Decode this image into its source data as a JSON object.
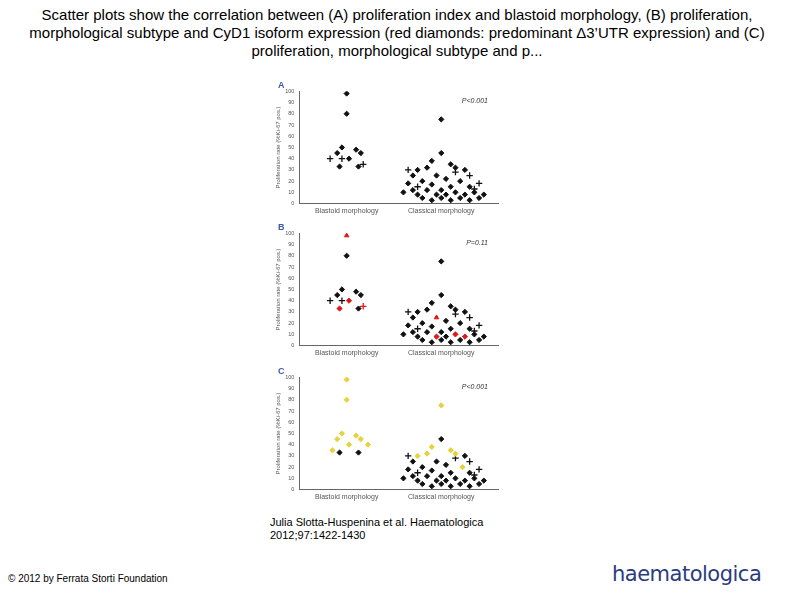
{
  "title": "Scatter plots show the correlation between (A) proliferation index and blastoid morphology, (B) proliferation, morphological subtype and CyD1 isoform expression (red diamonds: predominant Δ3’UTR expression) and (C) proliferation, morphological subtype and p...",
  "citation": "Julia Slotta-Huspenina et al. Haematologica 2012;97:1422-1430",
  "copyright": "© 2012 by Ferrata Storti Foundation",
  "logo": "haematologica",
  "chart_data": [
    {
      "panel": "A",
      "type": "scatter",
      "ylabel": "Proliferation rate (%Ki-67 pos.)",
      "annotation": "P<0.001",
      "xlim": [
        0,
        4.2
      ],
      "xticks": [
        {
          "value": 1,
          "label": "Blastoid morphology"
        },
        {
          "value": 3,
          "label": "Classical morphology"
        }
      ],
      "ylim": [
        0,
        100
      ],
      "yticks": [
        0,
        10,
        20,
        30,
        40,
        50,
        60,
        70,
        80,
        90,
        100
      ],
      "grid": false,
      "series": [
        {
          "color": "#111111",
          "marker": "diamond",
          "x": [
            1.0,
            1.0,
            0.9,
            1.2,
            0.8,
            1.3,
            1.05,
            1.25,
            0.85,
            3.0,
            3.0,
            2.8,
            3.2,
            2.5,
            2.7,
            3.3,
            3.5,
            2.4,
            2.9,
            3.1,
            2.6,
            3.4,
            2.3,
            2.8,
            3.2,
            3.6,
            2.4,
            2.7,
            3.0,
            3.3,
            3.7,
            2.5,
            2.9,
            3.1,
            3.5,
            2.6,
            3.0,
            3.4,
            3.8,
            2.8,
            3.2,
            3.6,
            2.2,
            3.9
          ],
          "values": [
            98,
            80,
            50,
            48,
            45,
            45,
            40,
            33,
            33,
            75,
            45,
            38,
            35,
            30,
            32,
            32,
            30,
            25,
            25,
            22,
            20,
            20,
            18,
            17,
            15,
            15,
            12,
            12,
            12,
            10,
            10,
            8,
            8,
            8,
            8,
            5,
            5,
            5,
            5,
            3,
            3,
            3,
            10,
            8
          ]
        },
        {
          "color": "#111111",
          "marker": "cross",
          "x": [
            0.65,
            0.9,
            1.35,
            2.3,
            3.6,
            3.8,
            2.5,
            3.7,
            3.3
          ],
          "values": [
            40,
            40,
            35,
            30,
            25,
            18,
            15,
            13,
            28
          ]
        }
      ]
    },
    {
      "panel": "B",
      "type": "scatter",
      "ylabel": "Proliferation rate (%Ki-67 pos.)",
      "annotation": "P=0.11",
      "xlim": [
        0,
        4.2
      ],
      "xticks": [
        {
          "value": 1,
          "label": "Blastoid morphology"
        },
        {
          "value": 3,
          "label": "Classical morphology"
        }
      ],
      "ylim": [
        0,
        100
      ],
      "yticks": [
        0,
        10,
        20,
        30,
        40,
        50,
        60,
        70,
        80,
        90,
        100
      ],
      "grid": false,
      "series": [
        {
          "color": "#111111",
          "marker": "diamond",
          "x": [
            1.0,
            0.9,
            1.2,
            0.8,
            1.3,
            1.25,
            3.0,
            3.0,
            2.8,
            3.2,
            2.5,
            2.7,
            3.3,
            3.5,
            2.4,
            3.1,
            2.6,
            3.4,
            2.3,
            2.8,
            3.2,
            3.6,
            2.4,
            2.7,
            3.0,
            3.7,
            2.5,
            3.1,
            2.6,
            3.0,
            3.4,
            3.8,
            2.8,
            3.2,
            3.6,
            2.2,
            3.9
          ],
          "values": [
            80,
            50,
            48,
            45,
            45,
            33,
            75,
            45,
            38,
            35,
            30,
            32,
            32,
            30,
            25,
            22,
            20,
            20,
            18,
            17,
            15,
            15,
            12,
            12,
            12,
            10,
            8,
            8,
            5,
            5,
            5,
            5,
            3,
            3,
            3,
            10,
            8
          ]
        },
        {
          "color": "#e0161b",
          "marker": "diamond",
          "x": [
            1.05,
            0.85,
            3.3,
            2.9,
            3.5
          ],
          "values": [
            40,
            33,
            10,
            8,
            8
          ]
        },
        {
          "color": "#e0161b",
          "marker": "triangle",
          "x": [
            1.0,
            2.9
          ],
          "values": [
            98,
            25
          ]
        },
        {
          "color": "#111111",
          "marker": "cross",
          "x": [
            0.65,
            0.9,
            2.3,
            3.6,
            3.8,
            2.5,
            3.7,
            3.3
          ],
          "values": [
            40,
            40,
            30,
            25,
            18,
            15,
            13,
            28
          ]
        },
        {
          "color": "#e0161b",
          "marker": "cross",
          "x": [
            1.35
          ],
          "values": [
            35
          ]
        }
      ]
    },
    {
      "panel": "C",
      "type": "scatter",
      "ylabel": "Proliferation rate (%Ki-67 pos.)",
      "annotation": "P<0.001",
      "xlim": [
        0,
        4.2
      ],
      "xticks": [
        {
          "value": 1,
          "label": "Blastoid morphology"
        },
        {
          "value": 3,
          "label": "Classical morphology"
        }
      ],
      "ylim": [
        0,
        100
      ],
      "yticks": [
        0,
        10,
        20,
        30,
        40,
        50,
        60,
        70,
        80,
        90,
        100
      ],
      "grid": false,
      "series": [
        {
          "color": "#e6d23a",
          "marker": "diamond",
          "x": [
            1.0,
            1.0,
            0.9,
            1.2,
            0.8,
            1.3,
            1.05,
            0.7,
            1.45,
            3.0,
            2.8,
            3.2,
            2.5,
            2.7,
            3.3,
            3.45
          ],
          "values": [
            98,
            80,
            50,
            48,
            45,
            45,
            40,
            35,
            40,
            75,
            38,
            35,
            30,
            32,
            32,
            20
          ]
        },
        {
          "color": "#111111",
          "marker": "diamond",
          "x": [
            1.25,
            0.85,
            3.0,
            3.5,
            2.4,
            2.9,
            3.1,
            2.6,
            2.3,
            2.8,
            3.2,
            3.6,
            2.4,
            2.7,
            3.0,
            3.3,
            3.7,
            2.5,
            2.9,
            3.1,
            3.5,
            2.6,
            3.0,
            3.4,
            3.8,
            2.8,
            3.2,
            3.6,
            2.2,
            3.9
          ],
          "values": [
            33,
            33,
            45,
            30,
            25,
            25,
            22,
            20,
            18,
            17,
            15,
            15,
            12,
            12,
            12,
            10,
            10,
            8,
            8,
            8,
            8,
            5,
            5,
            5,
            5,
            3,
            3,
            3,
            10,
            8
          ]
        },
        {
          "color": "#111111",
          "marker": "cross",
          "x": [
            2.3,
            3.6,
            3.8,
            2.5,
            3.7,
            3.3
          ],
          "values": [
            30,
            25,
            18,
            15,
            13,
            28
          ]
        }
      ]
    }
  ]
}
